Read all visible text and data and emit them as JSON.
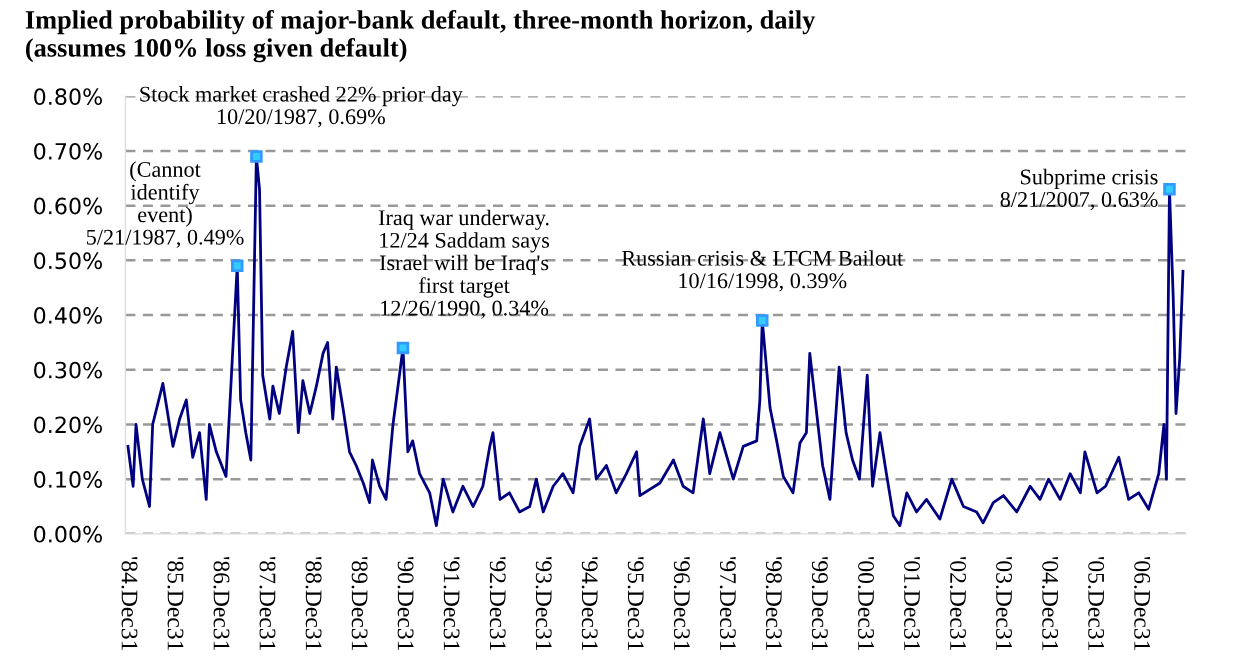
{
  "chart_data": {
    "type": "line",
    "title": "Implied probability of major-bank default, three-month horizon, daily\n(assumes 100% loss given default)",
    "x": [
      "1985-01-04",
      "1985-02-14",
      "1985-03-09",
      "1985-04-28",
      "1985-06-24",
      "1985-07-19",
      "1985-10-08",
      "1985-12-27",
      "1986-02-18",
      "1986-04-12",
      "1986-06-02",
      "1986-07-26",
      "1986-09-17",
      "1986-10-12",
      "1986-12-06",
      "1987-02-21",
      "1987-03-20",
      "1987-05-21",
      "1987-06-17",
      "1987-07-28",
      "1987-09-06",
      "1987-10-20",
      "1987-11-14",
      "1987-12-09",
      "1988-02-03",
      "1988-02-28",
      "1988-04-19",
      "1988-06-13",
      "1988-08-03",
      "1988-09-17",
      "1988-10-23",
      "1988-12-17",
      "1989-02-07",
      "1989-04-01",
      "1989-05-07",
      "1989-06-17",
      "1989-07-15",
      "1989-09-06",
      "1989-10-28",
      "1989-12-20",
      "1990-02-14",
      "1990-04-05",
      "1990-04-28",
      "1990-06-24",
      "1990-08-14",
      "1990-10-08",
      "1990-11-28",
      "1990-12-26",
      "1991-02-03",
      "1991-03-13",
      "1991-05-07",
      "1991-07-26",
      "1991-09-17",
      "1991-11-10",
      "1992-01-26",
      "1992-04-15",
      "1992-07-05",
      "1992-09-20",
      "1992-11-14",
      "1992-12-09",
      "1993-02-03",
      "1993-04-19",
      "1993-07-08",
      "1993-09-27",
      "1993-11-18",
      "1994-01-12",
      "1994-04-01",
      "1994-06-17",
      "1994-09-06",
      "1994-10-28",
      "1995-01-15",
      "1995-03-09",
      "1995-05-28",
      "1995-08-14",
      "1995-11-03",
      "1996-01-23",
      "1996-02-18",
      "1996-07-26",
      "1996-11-10",
      "1997-01-26",
      "1997-04-15",
      "1997-07-05",
      "1997-08-25",
      "1997-11-14",
      "1998-02-28",
      "1998-05-18",
      "1998-09-02",
      "1998-09-27",
      "1998-10-16",
      "1998-12-17",
      "1999-02-07",
      "1999-04-01",
      "1999-06-17",
      "1999-08-11",
      "1999-10-01",
      "1999-10-28",
      "1999-12-17",
      "2000-02-07",
      "2000-04-05",
      "2000-06-17",
      "2000-08-11",
      "2000-10-01",
      "2000-11-25",
      "2001-01-26",
      "2001-03-09",
      "2001-05-07",
      "2001-06-27",
      "2001-08-21",
      "2001-10-12",
      "2001-12-06",
      "2002-02-21",
      "2002-05-11",
      "2002-08-25",
      "2002-11-28",
      "2003-02-28",
      "2003-06-13",
      "2003-08-03",
      "2003-10-23",
      "2004-01-12",
      "2004-04-26",
      "2004-08-11",
      "2004-10-28",
      "2005-01-04",
      "2005-04-05",
      "2005-06-24",
      "2005-09-13",
      "2005-10-19",
      "2006-01-23",
      "2006-04-01",
      "2006-07-15",
      "2006-10-01",
      "2006-12-20",
      "2007-03-09",
      "2007-05-28",
      "2007-07-08",
      "2007-07-28",
      "2007-08-21",
      "2007-09-20",
      "2007-10-12",
      "2007-11-10",
      "2007-12-06"
    ],
    "series": [
      {
        "color": "#000080",
        "values": [
          0.16,
          0.087,
          0.2,
          0.1,
          0.05,
          0.2,
          0.275,
          0.16,
          0.21,
          0.245,
          0.14,
          0.185,
          0.063,
          0.2,
          0.15,
          0.105,
          0.22,
          0.49,
          0.245,
          0.185,
          0.135,
          0.69,
          0.63,
          0.29,
          0.21,
          0.27,
          0.22,
          0.305,
          0.37,
          0.185,
          0.28,
          0.22,
          0.27,
          0.33,
          0.35,
          0.21,
          0.305,
          0.23,
          0.15,
          0.125,
          0.093,
          0.057,
          0.135,
          0.087,
          0.063,
          0.2,
          0.29,
          0.34,
          0.15,
          0.17,
          0.11,
          0.075,
          0.015,
          0.1,
          0.04,
          0.087,
          0.05,
          0.087,
          0.16,
          0.185,
          0.063,
          0.075,
          0.04,
          0.05,
          0.1,
          0.04,
          0.087,
          0.11,
          0.075,
          0.16,
          0.21,
          0.1,
          0.125,
          0.075,
          0.11,
          0.15,
          0.07,
          0.093,
          0.135,
          0.087,
          0.075,
          0.21,
          0.11,
          0.185,
          0.1,
          0.16,
          0.17,
          0.245,
          0.39,
          0.23,
          0.17,
          0.105,
          0.075,
          0.166,
          0.185,
          0.33,
          0.23,
          0.125,
          0.063,
          0.305,
          0.185,
          0.135,
          0.1,
          0.29,
          0.087,
          0.185,
          0.11,
          0.033,
          0.015,
          0.075,
          0.04,
          0.063,
          0.027,
          0.1,
          0.05,
          0.04,
          0.02,
          0.057,
          0.07,
          0.04,
          0.087,
          0.063,
          0.1,
          0.063,
          0.11,
          0.075,
          0.15,
          0.075,
          0.087,
          0.14,
          0.063,
          0.075,
          0.045,
          0.11,
          0.2,
          0.1,
          0.63,
          0.43,
          0.22,
          0.32,
          0.48
        ]
      }
    ],
    "xlim": [
      "1984-12-15",
      "2007-12-31"
    ],
    "xticks": [
      {
        "value": "1984-12-31",
        "label": "'84.Dec31"
      },
      {
        "value": "1985-12-31",
        "label": "'85.Dec31"
      },
      {
        "value": "1986-12-31",
        "label": "'86.Dec31"
      },
      {
        "value": "1987-12-31",
        "label": "'87.Dec31"
      },
      {
        "value": "1988-12-31",
        "label": "'88.Dec31"
      },
      {
        "value": "1989-12-31",
        "label": "'89.Dec31"
      },
      {
        "value": "1990-12-31",
        "label": "'90.Dec31"
      },
      {
        "value": "1991-12-31",
        "label": "'91.Dec31"
      },
      {
        "value": "1992-12-31",
        "label": "'92.Dec31"
      },
      {
        "value": "1993-12-31",
        "label": "'93.Dec31"
      },
      {
        "value": "1994-12-31",
        "label": "'94.Dec31"
      },
      {
        "value": "1995-12-31",
        "label": "'95.Dec31"
      },
      {
        "value": "1996-12-31",
        "label": "'96.Dec31"
      },
      {
        "value": "1997-12-31",
        "label": "'97.Dec31"
      },
      {
        "value": "1998-12-31",
        "label": "'98.Dec31"
      },
      {
        "value": "1999-12-31",
        "label": "'99.Dec31"
      },
      {
        "value": "2000-12-31",
        "label": "'00.Dec31"
      },
      {
        "value": "2001-12-31",
        "label": "'01.Dec31"
      },
      {
        "value": "2002-12-31",
        "label": "'02.Dec31"
      },
      {
        "value": "2003-12-31",
        "label": "'03.Dec31"
      },
      {
        "value": "2004-12-31",
        "label": "'04.Dec31"
      },
      {
        "value": "2005-12-31",
        "label": "'05.Dec31"
      },
      {
        "value": "2006-12-31",
        "label": "'06.Dec31"
      }
    ],
    "ylim": [
      0,
      0.8
    ],
    "yticks": [
      {
        "value": 0,
        "label": "0.00%"
      },
      {
        "value": 0.1,
        "label": "0.10%"
      },
      {
        "value": 0.2,
        "label": "0.20%"
      },
      {
        "value": 0.3,
        "label": "0.30%"
      },
      {
        "value": 0.4,
        "label": "0.40%"
      },
      {
        "value": 0.5,
        "label": "0.50%"
      },
      {
        "value": 0.6,
        "label": "0.60%"
      },
      {
        "value": 0.7,
        "label": "0.70%"
      },
      {
        "value": 0.8,
        "label": "0.80%"
      }
    ],
    "grid": "y",
    "annotations": [
      {
        "text": "(Cannot\nidentify\nevent)\n5/21/1987, 0.49%",
        "x": "1987-05-21",
        "y": 0.49
      },
      {
        "text": "Stock market crashed 22% prior day\n10/20/1987, 0.69%",
        "x": "1987-10-20",
        "y": 0.69
      },
      {
        "text": "Iraq war underway.\n12/24 Saddam says\nIsrael will be Iraq's\nfirst target\n12/26/1990, 0.34%",
        "x": "1990-12-26",
        "y": 0.34
      },
      {
        "text": "Russian crisis & LTCM Bailout\n10/16/1998, 0.39%",
        "x": "1998-10-16",
        "y": 0.39
      },
      {
        "text": "Subprime crisis\n8/21/2007, 0.63%",
        "x": "2007-08-21",
        "y": 0.63
      }
    ]
  }
}
